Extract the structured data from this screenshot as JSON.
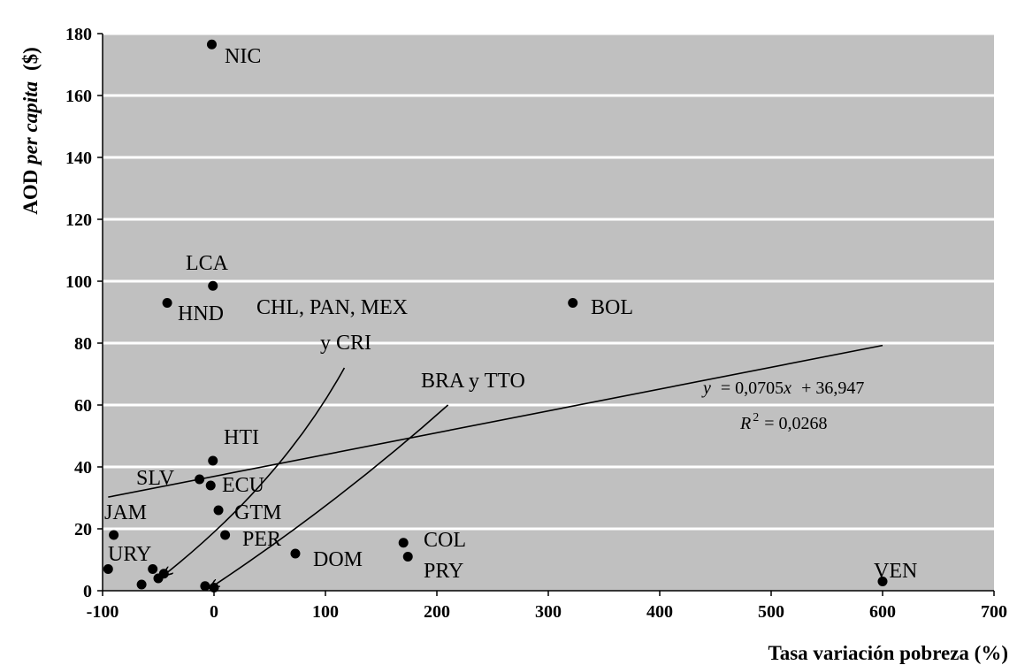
{
  "chart_data": {
    "type": "scatter",
    "xlabel": "Tasa variación pobreza (%)",
    "ylabel_prefix": "AOD ",
    "ylabel_italic": "per capita",
    "ylabel_unit": "($)",
    "xlim": [
      -100,
      700
    ],
    "ylim": [
      0,
      180
    ],
    "x_ticks": [
      -100,
      0,
      100,
      200,
      300,
      400,
      500,
      600,
      700
    ],
    "y_ticks": [
      0,
      20,
      40,
      60,
      80,
      100,
      120,
      140,
      160,
      180
    ],
    "grid": "horizontal",
    "plot_background": "#c0c0c0",
    "points": [
      {
        "x": -2,
        "y": 176.5
      },
      {
        "x": -1,
        "y": 98.5
      },
      {
        "x": -42,
        "y": 93
      },
      {
        "x": 322,
        "y": 93
      },
      {
        "x": -1,
        "y": 42
      },
      {
        "x": -13,
        "y": 36
      },
      {
        "x": -3,
        "y": 34
      },
      {
        "x": 4,
        "y": 26
      },
      {
        "x": -90,
        "y": 18
      },
      {
        "x": 10,
        "y": 18
      },
      {
        "x": 73,
        "y": 12
      },
      {
        "x": 170,
        "y": 15.5
      },
      {
        "x": 174,
        "y": 11
      },
      {
        "x": 600,
        "y": 3
      },
      {
        "x": -95,
        "y": 7
      },
      {
        "x": -55,
        "y": 7
      },
      {
        "x": -45,
        "y": 5.5
      },
      {
        "x": -50,
        "y": 4
      },
      {
        "x": -65,
        "y": 2
      },
      {
        "x": -8,
        "y": 1.5
      },
      {
        "x": 0,
        "y": 1
      }
    ],
    "labels": {
      "nic": "NIC",
      "lca": "LCA",
      "hnd": "HND",
      "chl_group_line1": "CHL, PAN, MEX",
      "chl_group_line2": "y CRI",
      "bol": "BOL",
      "bra_group": "BRA y TTO",
      "hti": "HTI",
      "slv": "SLV",
      "ecu": "ECU",
      "gtm": "GTM",
      "jam": "JAM",
      "per": "PER",
      "ury": "URY",
      "dom": "DOM",
      "col": "COL",
      "pry": "PRY",
      "ven": "VEN"
    },
    "trendline": {
      "slope": 0.0705,
      "intercept": 36.947,
      "x_start": -95,
      "x_end": 600
    },
    "equation": "= 0,0705",
    "equation_y": "y",
    "equation_x": "x",
    "equation_tail": "+ 36,947",
    "r2_symbol": "R",
    "r2_exp": "2",
    "r2_value": "= 0,0268",
    "arrows": [
      {
        "from": [
          117,
          72
        ],
        "ctrl": [
          60,
          35
        ],
        "to": [
          -45,
          5
        ]
      },
      {
        "from": [
          210,
          60
        ],
        "ctrl": [
          110,
          28
        ],
        "to": [
          -3,
          1
        ]
      }
    ]
  }
}
